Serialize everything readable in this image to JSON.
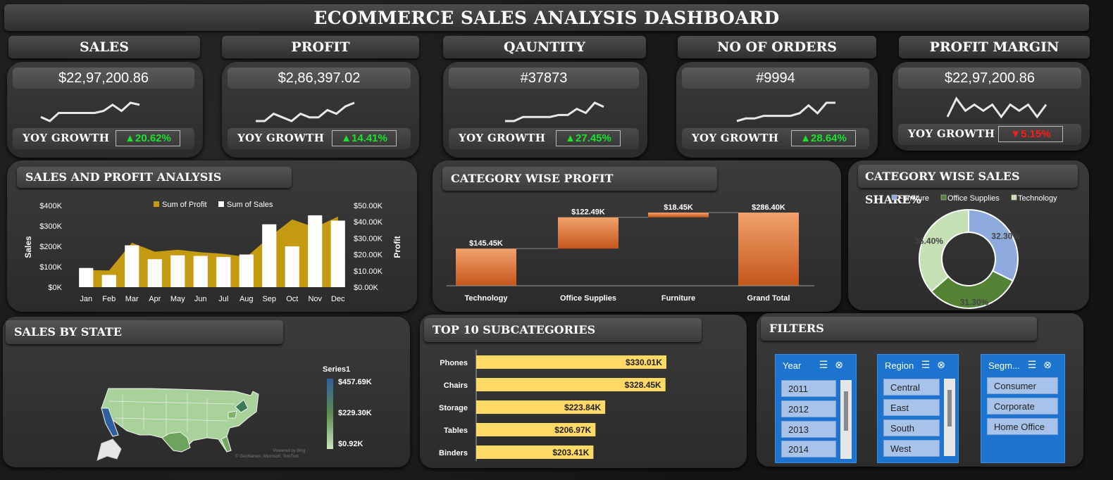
{
  "dashboard": {
    "title": "Ecommerce Sales Analysis Dashboard"
  },
  "kpis": [
    {
      "label": "SALES",
      "value": "$22,97,200.86",
      "yoy_label": "YOY GROWTH",
      "yoy": "▲20.62%",
      "dir": "up",
      "spark": [
        3,
        1,
        5,
        5,
        5,
        5,
        5,
        6,
        9,
        6,
        10,
        9
      ]
    },
    {
      "label": "PROFIT",
      "value": "$2,86,397.02",
      "yoy_label": "YOY GROWTH",
      "yoy": "▲14.41%",
      "dir": "up",
      "spark": [
        4,
        4,
        6,
        5,
        4,
        6,
        5,
        5,
        7,
        6,
        8,
        9
      ]
    },
    {
      "label": "QAUNTITY",
      "value": "#37873",
      "yoy_label": "YOY GROWTH",
      "yoy": "▲27.45%",
      "dir": "up",
      "spark": [
        2,
        2,
        4,
        4,
        4,
        4,
        5,
        5,
        8,
        6,
        11,
        9
      ]
    },
    {
      "label": "NO OF ORDERS",
      "value": "#9994",
      "yoy_label": "YOY GROWTH",
      "yoy": "▲28.64%",
      "dir": "up",
      "spark": [
        2,
        3,
        3,
        4,
        4,
        4,
        4,
        5,
        8,
        5,
        9,
        9
      ]
    },
    {
      "label": "PROFIT MARGIN",
      "value": "$22,97,200.86",
      "yoy_label": "YOY GROWTH",
      "yoy": "▼5.15%",
      "dir": "down",
      "spark": [
        6,
        9,
        7,
        8,
        7,
        8,
        6,
        8,
        7,
        8,
        6,
        8
      ]
    }
  ],
  "sections": {
    "sales_profit": "Sales and Profit Analysis",
    "category_profit": "Category wise profit",
    "category_share": "Category wise sales share%",
    "sales_state": "Sales by state",
    "top10": "Top 10 subcategories",
    "filters": "Filters"
  },
  "chart_data": [
    {
      "type": "bar",
      "title": "Sales and Profit Analysis",
      "categories": [
        "Jan",
        "Feb",
        "Mar",
        "Apr",
        "May",
        "Jun",
        "Jul",
        "Aug",
        "Sep",
        "Oct",
        "Nov",
        "Dec"
      ],
      "series": [
        {
          "name": "Sum of Sales",
          "type": "bar",
          "values": [
            94000,
            60000,
            205000,
            137000,
            156000,
            153000,
            148000,
            160000,
            308000,
            200000,
            352000,
            326000
          ]
        },
        {
          "name": "Sum of Profit",
          "type": "area",
          "values": [
            10500,
            10200,
            27200,
            21700,
            22900,
            21400,
            20400,
            18500,
            30600,
            41500,
            36600,
            43200
          ]
        }
      ],
      "ylabel": "Sales",
      "y2label": "Profit",
      "ylim": [
        0,
        400000
      ],
      "y2lim": [
        0,
        50000
      ],
      "y_ticks": [
        "$0K",
        "$100K",
        "$200K",
        "$300K",
        "$400K"
      ],
      "y2_ticks": [
        "$0.00K",
        "$10.00K",
        "$20.00K",
        "$30.00K",
        "$40.00K",
        "$50.00K"
      ],
      "legend_position": "top"
    },
    {
      "type": "waterfall",
      "title": "Category wise profit",
      "categories": [
        "Technology",
        "Office Supplies",
        "Furniture",
        "Grand Total"
      ],
      "values": [
        145.45,
        122.49,
        18.45,
        286.4
      ],
      "labels": [
        "$145.45K",
        "$122.49K",
        "$18.45K",
        "$286.40K"
      ]
    },
    {
      "type": "pie",
      "title": "Category wise sales share%",
      "categories": [
        "Furniture",
        "Office Supplies",
        "Technology"
      ],
      "values": [
        32.3,
        31.3,
        36.4
      ],
      "labels": [
        "32.30%",
        "31.30%",
        "36.40%"
      ],
      "colors": [
        "#8faadc",
        "#548235",
        "#c5e0b4"
      ],
      "legend_position": "top"
    },
    {
      "type": "bar",
      "orientation": "horizontal",
      "title": "Top 10 subcategories",
      "categories": [
        "Phones",
        "Chairs",
        "Storage",
        "Tables",
        "Binders"
      ],
      "values": [
        330.01,
        328.45,
        223.84,
        206.97,
        203.41
      ],
      "labels": [
        "$330.01K",
        "$328.45K",
        "$223.84K",
        "$206.97K",
        "$203.41K"
      ]
    }
  ],
  "map": {
    "legend_title": "Series1",
    "legend_max": "$457.69K",
    "legend_mid": "$229.30K",
    "legend_min": "$0.92K",
    "credit_line1": "Powered by Bing",
    "credit_line2": "© GeoNames, Microsoft, TomTom"
  },
  "slicers": [
    {
      "title": "Year",
      "items": [
        "2011",
        "2012",
        "2013",
        "2014"
      ],
      "scroll": true
    },
    {
      "title": "Region",
      "items": [
        "Central",
        "East",
        "South",
        "West"
      ],
      "scroll": true
    },
    {
      "title": "Segm...",
      "items": [
        "Consumer",
        "Corporate",
        "Home Office"
      ],
      "scroll": false
    }
  ],
  "slicer_icons": {
    "multi": "☰",
    "clear": "⊗"
  }
}
